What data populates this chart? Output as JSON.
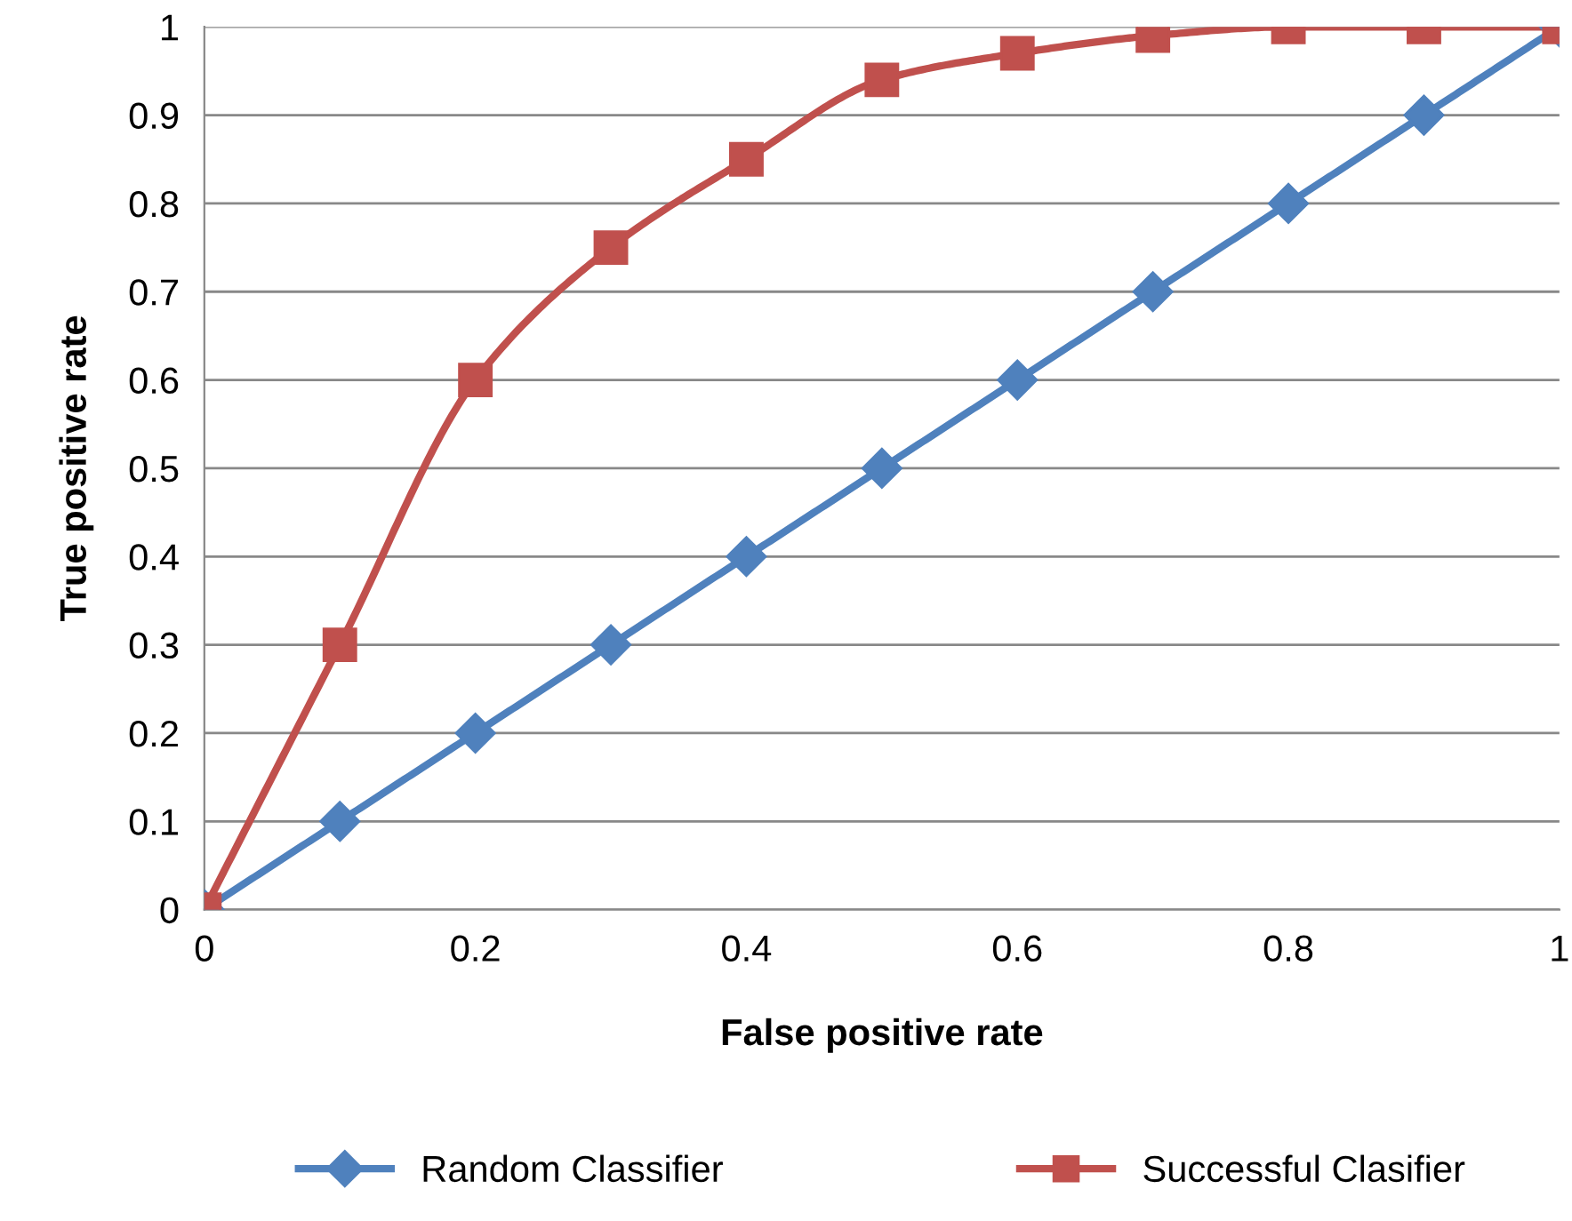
{
  "chart_data": {
    "type": "line",
    "xlabel": "False positive rate",
    "ylabel": "True positive rate",
    "x": [
      0,
      0.1,
      0.2,
      0.3,
      0.4,
      0.5,
      0.6,
      0.7,
      0.8,
      0.9,
      1
    ],
    "series": [
      {
        "name": "Random Classifier",
        "color": "#4f81bd",
        "marker": "diamond",
        "values": [
          0,
          0.1,
          0.2,
          0.3,
          0.4,
          0.5,
          0.6,
          0.7,
          0.8,
          0.9,
          1
        ]
      },
      {
        "name": "Successful Clasifier",
        "color": "#c0504d",
        "marker": "square",
        "values": [
          0,
          0.3,
          0.6,
          0.75,
          0.85,
          0.94,
          0.97,
          0.99,
          1,
          1,
          1
        ]
      }
    ],
    "xlim": [
      0,
      1
    ],
    "xticks": [
      0,
      0.2,
      0.4,
      0.6,
      0.8,
      1
    ],
    "ylim": [
      0,
      1
    ],
    "yticks": [
      0,
      0.1,
      0.2,
      0.3,
      0.4,
      0.5,
      0.6,
      0.7,
      0.8,
      0.9,
      1
    ],
    "grid": "y",
    "legend": "bottom",
    "line_style": "solid"
  }
}
